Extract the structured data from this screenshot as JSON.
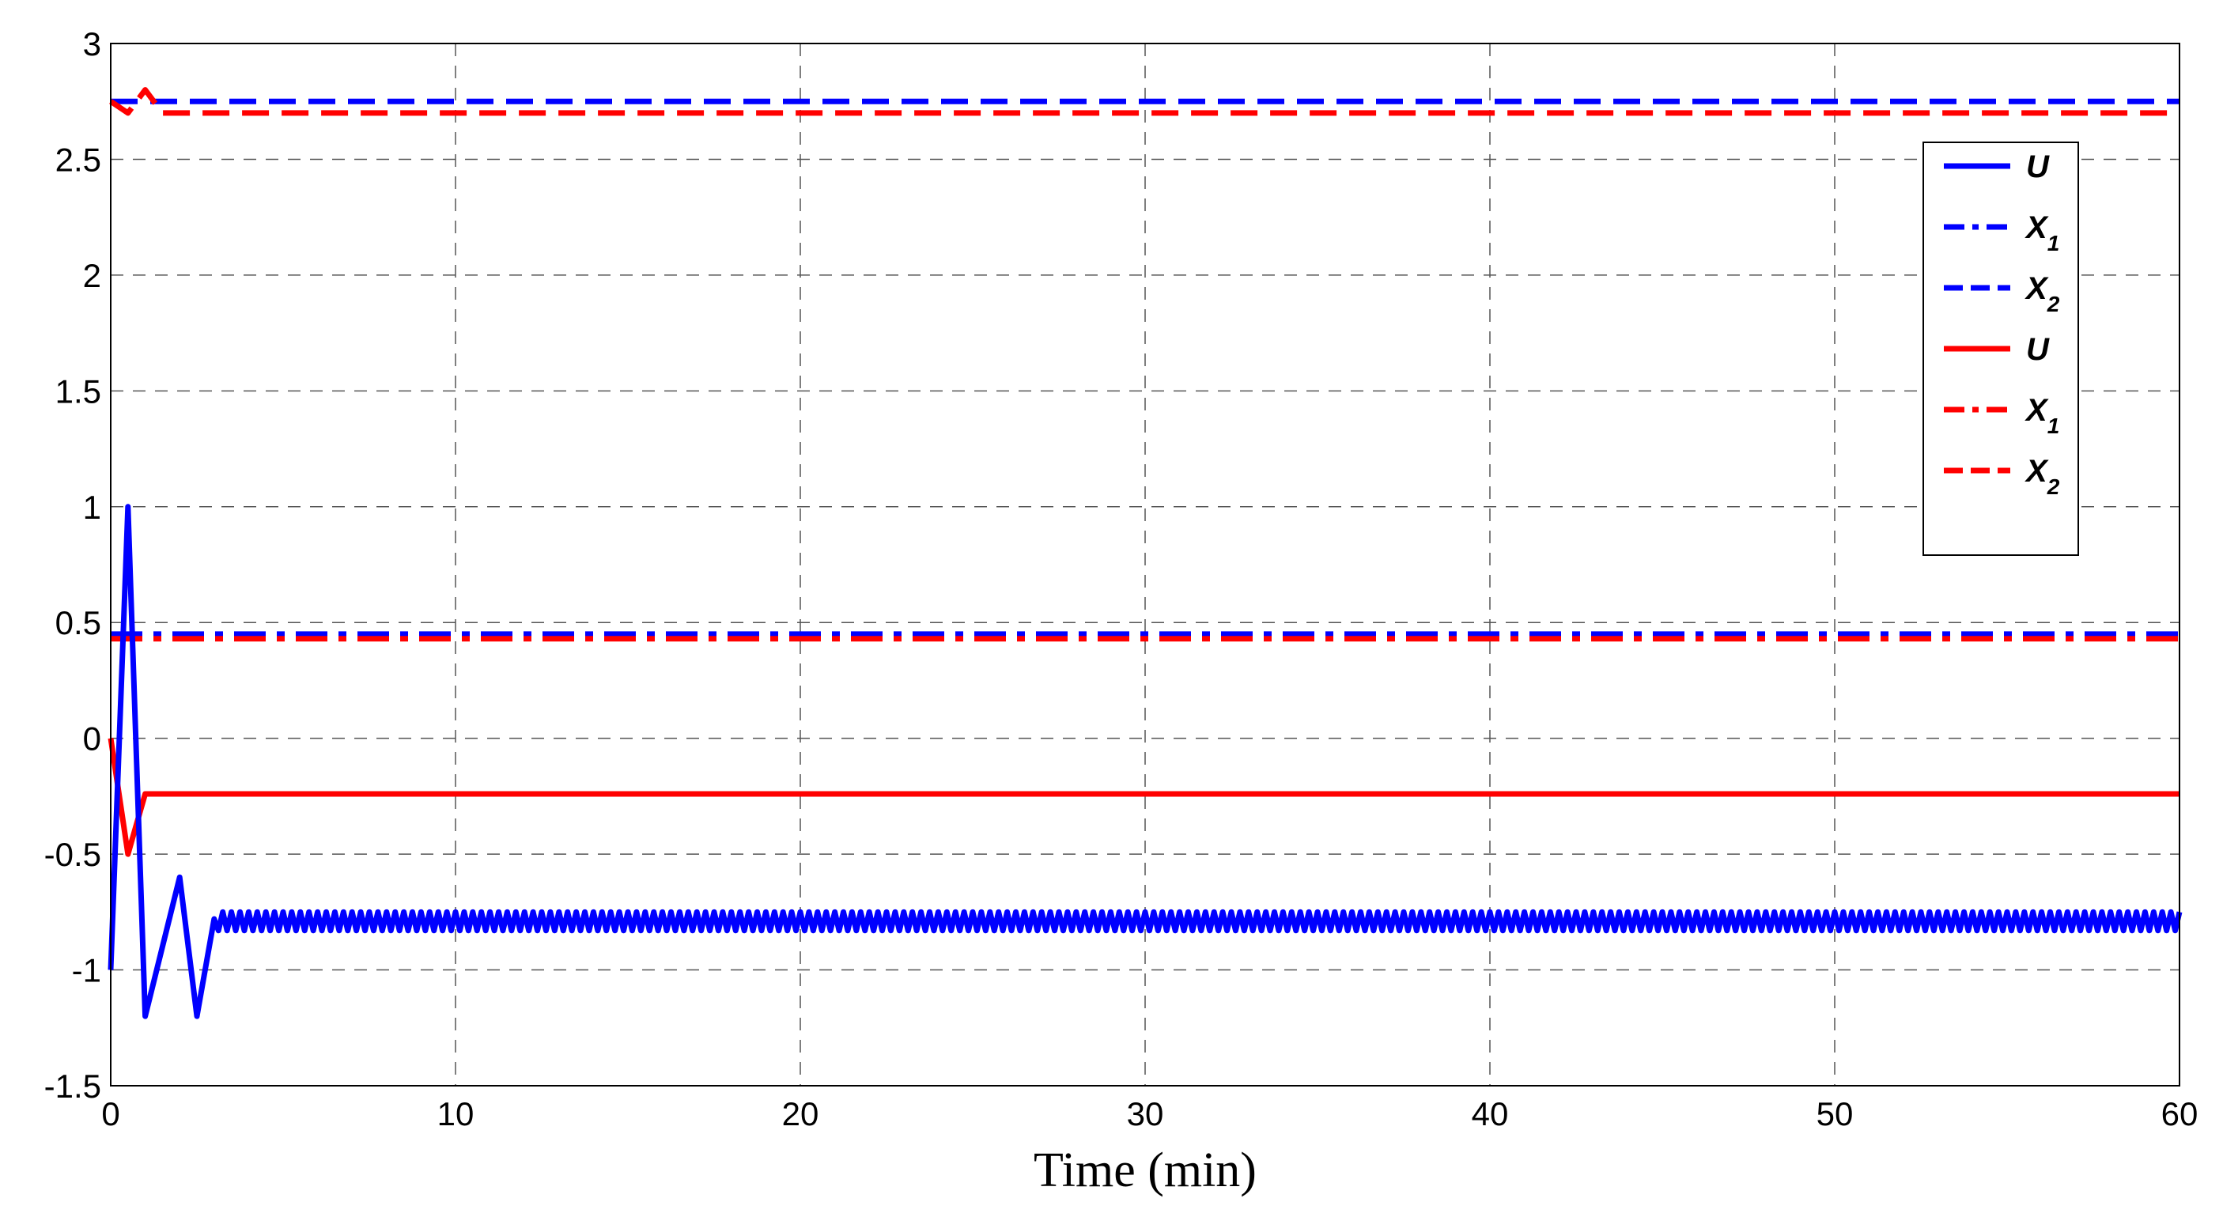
{
  "chart_data": {
    "type": "line",
    "title": "",
    "xlabel": "Time (min)",
    "ylabel": "",
    "xlim": [
      0,
      60
    ],
    "ylim": [
      -1.5,
      3
    ],
    "xticks": [
      0,
      10,
      20,
      30,
      40,
      50,
      60
    ],
    "yticks": [
      -1.5,
      -1,
      -0.5,
      0,
      0.5,
      1,
      1.5,
      2,
      2.5,
      3
    ],
    "ytick_labels": [
      "-1.5",
      "-1",
      "-0.5",
      "0",
      "0.5",
      "1",
      "1.5",
      "2",
      "2.5",
      "3"
    ],
    "grid": true,
    "legend_position": "top-right",
    "series": [
      {
        "name": "U",
        "color": "#0000ff",
        "style": "solid",
        "x": [
          0,
          0.5,
          1.0,
          2.0,
          2.5,
          3.0
        ],
        "y": [
          -1.0,
          1.0,
          -1.2,
          -0.6,
          -1.2,
          -0.78
        ],
        "steady_oscillation": {
          "from": 3.0,
          "to": 60,
          "min": -0.83,
          "max": -0.75,
          "period": 0.25
        }
      },
      {
        "name": "X1",
        "color": "#0000ff",
        "style": "dashdot",
        "x": [
          0,
          60
        ],
        "y": [
          0.45,
          0.45
        ]
      },
      {
        "name": "X2",
        "color": "#0000ff",
        "style": "dashed",
        "x": [
          0,
          60
        ],
        "y": [
          2.75,
          2.75
        ]
      },
      {
        "name": "U",
        "color": "#ff0000",
        "style": "solid",
        "x": [
          0,
          0.5,
          1.0,
          60
        ],
        "y": [
          0,
          -0.5,
          -0.24,
          -0.24
        ]
      },
      {
        "name": "X1",
        "color": "#ff0000",
        "style": "dashdot",
        "x": [
          0,
          60
        ],
        "y": [
          0.43,
          0.43
        ]
      },
      {
        "name": "X2",
        "color": "#ff0000",
        "style": "dashed",
        "x": [
          0,
          0.5,
          1.0,
          1.5,
          60
        ],
        "y": [
          2.75,
          2.7,
          2.8,
          2.7,
          2.7
        ]
      }
    ],
    "legend": [
      {
        "main": "U",
        "sub": "",
        "color": "#0000ff",
        "style": "solid"
      },
      {
        "main": "X",
        "sub": "1",
        "color": "#0000ff",
        "style": "dashdot"
      },
      {
        "main": "X",
        "sub": "2",
        "color": "#0000ff",
        "style": "dashed"
      },
      {
        "main": "U",
        "sub": "",
        "color": "#ff0000",
        "style": "solid"
      },
      {
        "main": "X",
        "sub": "1",
        "color": "#ff0000",
        "style": "dashdot"
      },
      {
        "main": "X",
        "sub": "2",
        "color": "#ff0000",
        "style": "dashed"
      }
    ]
  }
}
